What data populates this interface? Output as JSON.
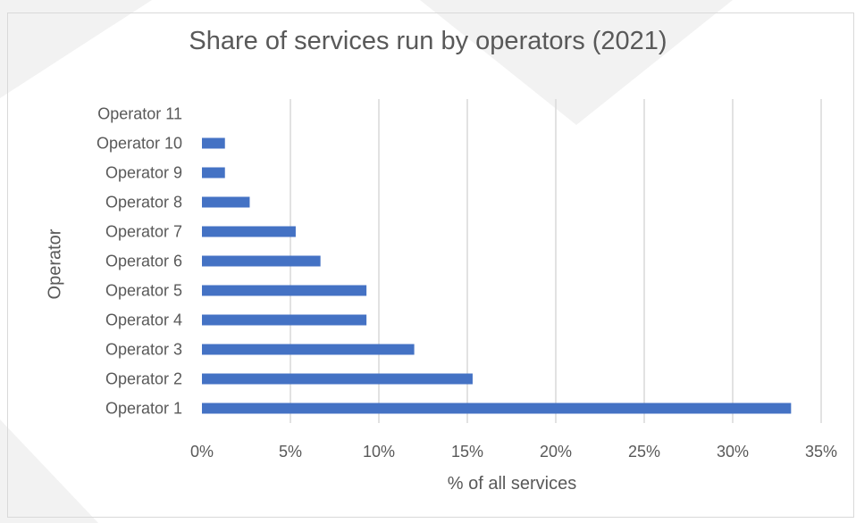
{
  "chart_data": {
    "type": "bar",
    "orientation": "horizontal",
    "title": "Share of services run by operators (2021)",
    "xlabel": "% of all services",
    "ylabel": "Operator",
    "categories": [
      "Operator 1",
      "Operator 2",
      "Operator 3",
      "Operator 4",
      "Operator 5",
      "Operator 6",
      "Operator 7",
      "Operator 8",
      "Operator 9",
      "Operator 10",
      "Operator 11"
    ],
    "values": [
      33.3,
      15.3,
      12.0,
      9.3,
      9.3,
      6.7,
      5.3,
      2.7,
      1.3,
      1.3,
      0
    ],
    "xlim": [
      0,
      35
    ],
    "x_ticks": [
      0,
      5,
      10,
      15,
      20,
      25,
      30,
      35
    ],
    "x_tick_labels": [
      "0%",
      "5%",
      "10%",
      "15%",
      "20%",
      "25%",
      "30%",
      "35%"
    ],
    "grid": "vertical",
    "colors": {
      "bar": "#4472c4",
      "grid": "#d9d9d9",
      "text": "#595959"
    }
  }
}
